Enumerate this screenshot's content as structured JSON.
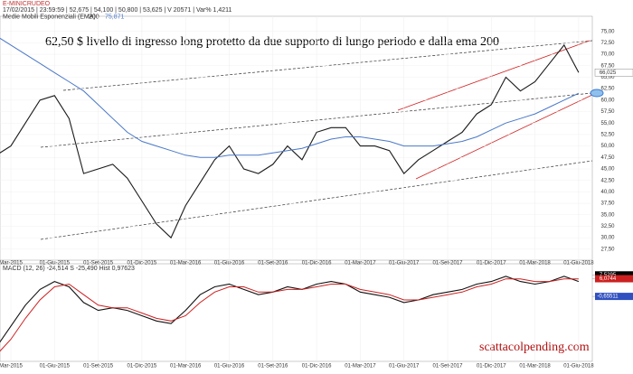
{
  "header": {
    "symbol": "E-MINICRUDEO",
    "info": "17/02/2015 | 23:59:59 | 52,675 | 54,100 | 50,800 | 53,625 | V 20571 | Var% 1,4211",
    "indicator": "Medie Mobili Esponenziali (EMA)",
    "indicator_params": "200",
    "indicator_value": "75,871",
    "macd_info": "MACD (12, 26)  -24,514   S  -25,490   Hist  0,97623"
  },
  "annotation": "62,50 $ livello di ingresso long protetto da due supporto di lungo periodo e dalla ema 200",
  "watermark": "scattacolpending.com",
  "chart_data": [
    {
      "type": "line",
      "x": [
        "2015-02",
        "2015-03",
        "2015-04",
        "2015-05",
        "2015-06",
        "2015-07",
        "2015-08",
        "2015-09",
        "2015-10",
        "2015-11",
        "2015-12",
        "2016-01",
        "2016-02",
        "2016-03",
        "2016-04",
        "2016-05",
        "2016-06",
        "2016-07",
        "2016-08",
        "2016-09",
        "2016-10",
        "2016-11",
        "2016-12",
        "2017-01",
        "2017-02",
        "2017-03",
        "2017-04",
        "2017-05",
        "2017-06",
        "2017-07",
        "2017-08",
        "2017-09",
        "2017-10",
        "2017-11",
        "2017-12",
        "2018-01",
        "2018-02",
        "2018-03",
        "2018-04",
        "2018-05",
        "2018-06"
      ],
      "series": [
        {
          "name": "E-MINICRUDEO",
          "color": "#1a1a1a",
          "values": [
            48,
            50,
            55,
            60,
            61,
            56,
            44,
            45,
            46,
            43,
            38,
            33,
            30,
            37,
            42,
            47,
            50,
            45,
            44,
            46,
            50,
            47,
            53,
            54,
            54,
            50,
            50,
            49,
            44,
            47,
            49,
            51,
            53,
            57,
            59,
            65,
            62,
            64,
            68,
            72,
            66.025
          ],
          "value_labels": [
            null,
            null,
            null,
            null,
            null,
            null,
            null,
            null,
            null,
            null,
            null,
            null,
            null,
            null,
            null,
            null,
            null,
            null,
            null,
            null,
            null,
            null,
            null,
            null,
            null,
            null,
            null,
            null,
            null,
            null,
            null,
            null,
            null,
            null,
            null,
            null,
            null,
            null,
            null,
            null,
            "66,025"
          ]
        },
        {
          "name": "200",
          "color": "#4a78c8",
          "values": [
            74,
            72,
            70,
            68,
            66,
            64,
            62,
            59,
            56,
            53,
            51,
            50,
            49,
            48,
            47.5,
            47.5,
            48,
            48,
            48,
            48.5,
            49,
            49.5,
            50.5,
            51.5,
            52,
            52,
            51.5,
            51,
            50,
            50,
            50,
            50.5,
            51,
            52,
            53.5,
            55,
            56,
            57,
            58.5,
            60,
            61.5
          ]
        }
      ],
      "ylim": [
        25.5,
        77.5
      ],
      "yticks": [
        {
          "value": 75,
          "label": "75,00"
        },
        {
          "value": 72.5,
          "label": "72,50"
        },
        {
          "value": 70,
          "label": "70,00"
        },
        {
          "value": 67.5,
          "label": "67,50"
        },
        {
          "value": 65,
          "label": "65,00"
        },
        {
          "value": 62.5,
          "label": "62,50"
        },
        {
          "value": 60,
          "label": "60,00"
        },
        {
          "value": 57.5,
          "label": "57,50"
        },
        {
          "value": 55,
          "label": "55,00"
        },
        {
          "value": 52.5,
          "label": "52,50"
        },
        {
          "value": 50,
          "label": "50,00"
        },
        {
          "value": 47.5,
          "label": "47,50"
        },
        {
          "value": 45,
          "label": "45,00"
        },
        {
          "value": 42.5,
          "label": "42,50"
        },
        {
          "value": 40,
          "label": "40,00"
        },
        {
          "value": 37.5,
          "label": "37,50"
        },
        {
          "value": 35,
          "label": "35,00"
        },
        {
          "value": 32.5,
          "label": "32,50"
        },
        {
          "value": 30,
          "label": "30,00"
        },
        {
          "value": 27.5,
          "label": "27,50"
        }
      ],
      "xticks": [
        {
          "value": "2015-03",
          "label": "Mar-2015"
        },
        {
          "value": "2015-06",
          "label": "01-Giu-2015"
        },
        {
          "value": "2015-09",
          "label": "01-Set-2015"
        },
        {
          "value": "2015-12",
          "label": "01-Dic-2015"
        },
        {
          "value": "2016-03",
          "label": "01-Mar-2016"
        },
        {
          "value": "2016-06",
          "label": "01-Giu-2016"
        },
        {
          "value": "2016-09",
          "label": "01-Set-2016"
        },
        {
          "value": "2016-12",
          "label": "01-Dic-2016"
        },
        {
          "value": "2017-03",
          "label": "01-Mar-2017"
        },
        {
          "value": "2017-06",
          "label": "01-Giu-2017"
        },
        {
          "value": "2017-09",
          "label": "01-Set-2017"
        },
        {
          "value": "2017-12",
          "label": "01-Dic-2017"
        },
        {
          "value": "2018-03",
          "label": "01-Mar-2018"
        },
        {
          "value": "2018-06",
          "label": "01-Giu-2018"
        }
      ],
      "grid": true
    },
    {
      "type": "line",
      "x": [
        "2015-02",
        "2015-03",
        "2015-04",
        "2015-05",
        "2015-06",
        "2015-07",
        "2015-08",
        "2015-09",
        "2015-10",
        "2015-11",
        "2015-12",
        "2016-01",
        "2016-02",
        "2016-03",
        "2016-04",
        "2016-05",
        "2016-06",
        "2016-07",
        "2016-08",
        "2016-09",
        "2016-10",
        "2016-11",
        "2016-12",
        "2017-01",
        "2017-02",
        "2017-03",
        "2017-04",
        "2017-05",
        "2017-06",
        "2017-07",
        "2017-08",
        "2017-09",
        "2017-10",
        "2017-11",
        "2017-12",
        "2018-01",
        "2018-02",
        "2018-03",
        "2018-04",
        "2018-05",
        "2018-06"
      ],
      "series": [
        {
          "name": "MACD",
          "color": "#111111",
          "values": [
            -20,
            -12,
            -4,
            2,
            5,
            3,
            -3,
            -6,
            -5,
            -6,
            -8,
            -10,
            -11,
            -6,
            0,
            3,
            4,
            2,
            0,
            1,
            3,
            2,
            4,
            5,
            4,
            1,
            0,
            -1,
            -3,
            -2,
            0,
            1,
            2,
            4,
            5,
            7,
            5,
            4,
            5,
            7,
            5
          ]
        },
        {
          "name": "S",
          "color": "#cc2020",
          "values": [
            -23,
            -17,
            -9,
            -2,
            3,
            4,
            0,
            -4,
            -5,
            -5,
            -7,
            -9,
            -10,
            -8,
            -3,
            1,
            3,
            3,
            1,
            1,
            2,
            2,
            3,
            4,
            4,
            2,
            1,
            0,
            -2,
            -2,
            -1,
            0,
            1,
            3,
            4,
            6,
            6,
            5,
            5,
            6,
            6
          ]
        }
      ],
      "ylim": [
        -24,
        9
      ],
      "yticks": [
        {
          "value": 7.5295,
          "label": "7,5295"
        },
        {
          "value": 6.0744,
          "label": "6,0744"
        },
        {
          "value": -0.65511,
          "label": "-0,65511"
        }
      ],
      "xticks": [
        {
          "value": "2015-03",
          "label": "Mar-2015"
        },
        {
          "value": "2015-06",
          "label": "01-Giu-2015"
        },
        {
          "value": "2015-09",
          "label": "01-Set-2015"
        },
        {
          "value": "2015-12",
          "label": "01-Dic-2015"
        },
        {
          "value": "2016-03",
          "label": "01-Mar-2016"
        },
        {
          "value": "2016-06",
          "label": "01-Giu-2016"
        },
        {
          "value": "2016-09",
          "label": "01-Set-2016"
        },
        {
          "value": "2016-12",
          "label": "01-Dic-2016"
        },
        {
          "value": "2017-03",
          "label": "01-Mar-2017"
        },
        {
          "value": "2017-06",
          "label": "01-Giu-2017"
        },
        {
          "value": "2017-09",
          "label": "01-Set-2017"
        },
        {
          "value": "2017-12",
          "label": "01-Dic-2017"
        },
        {
          "value": "2018-03",
          "label": "01-Mar-2018"
        },
        {
          "value": "2018-06",
          "label": "01-Giu-2018"
        }
      ],
      "grid": true
    }
  ]
}
